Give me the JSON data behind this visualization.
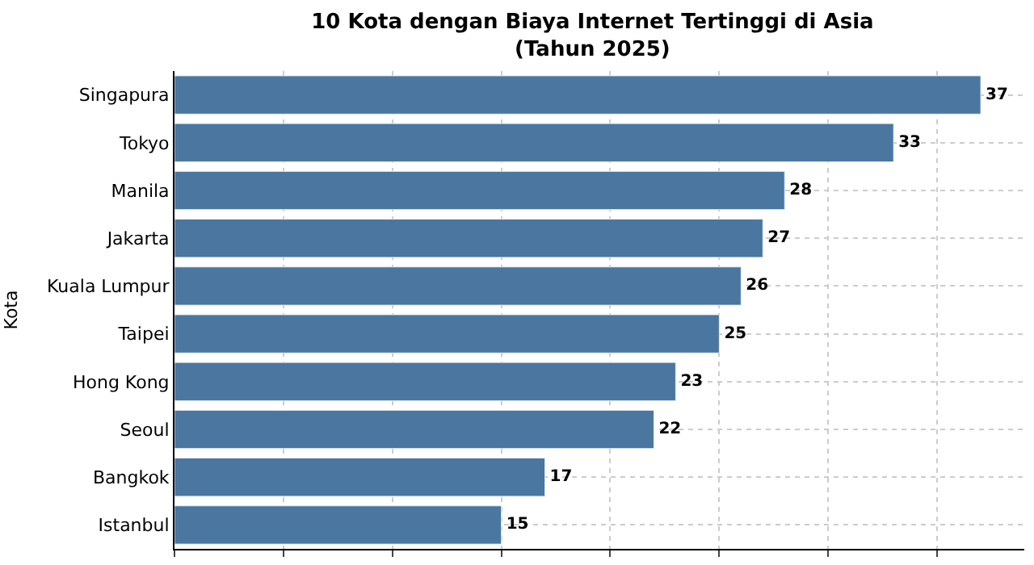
{
  "chart_data": {
    "type": "bar",
    "orientation": "horizontal",
    "title": "10 Kota dengan Biaya Internet Tertinggi di Asia\n(Tahun 2025)",
    "ylabel": "Kota",
    "categories": [
      "Singapura",
      "Tokyo",
      "Manila",
      "Jakarta",
      "Kuala Lumpur",
      "Taipei",
      "Hong Kong",
      "Seoul",
      "Bangkok",
      "Istanbul"
    ],
    "values": [
      37,
      33,
      28,
      27,
      26,
      25,
      23,
      22,
      17,
      15
    ],
    "color": "#4a76a0",
    "data_labels": true,
    "grid": true,
    "legend": false,
    "tick_labels": "y",
    "xlim": [
      0,
      39
    ],
    "xticks": [
      {
        "value": 0,
        "label": null
      },
      {
        "value": 5,
        "label": null
      },
      {
        "value": 10,
        "label": null
      },
      {
        "value": 15,
        "label": null
      },
      {
        "value": 20,
        "label": null
      },
      {
        "value": 25,
        "label": null
      },
      {
        "value": 30,
        "label": null
      },
      {
        "value": 35,
        "label": null
      }
    ]
  }
}
